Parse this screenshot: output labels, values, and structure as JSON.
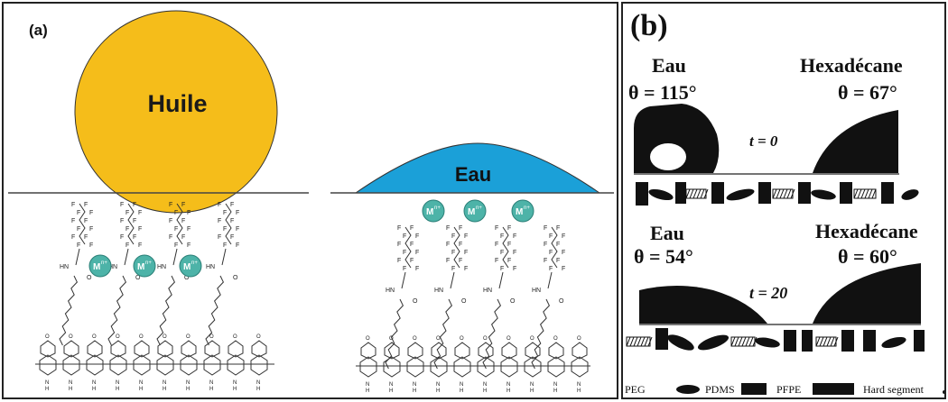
{
  "panel_a": {
    "label": "(a)",
    "oil_label": "Huile",
    "water_label": "Eau",
    "metal_label": "M",
    "metal_charge": "n+",
    "fluorine": "F",
    "nitrogen": "N",
    "hydrogen": "H",
    "oxygen": "O",
    "amine": "HN",
    "colors": {
      "oil": "#f5bd1a",
      "water": "#1ba0d8",
      "metal": "#4db3a8"
    }
  },
  "panel_b": {
    "label": "(b)",
    "top": {
      "left_liquid": "Eau",
      "left_angle": "θ = 115°",
      "right_liquid": "Hexadécane",
      "right_angle": "θ = 67°",
      "time": "t = 0"
    },
    "bottom": {
      "left_liquid": "Eau",
      "left_angle": "θ = 54°",
      "right_liquid": "Hexadécane",
      "right_angle": "θ = 60°",
      "time": "t = 20"
    },
    "legend": [
      "PEG",
      "PDMS",
      "PFPE",
      "Hard segment"
    ]
  }
}
